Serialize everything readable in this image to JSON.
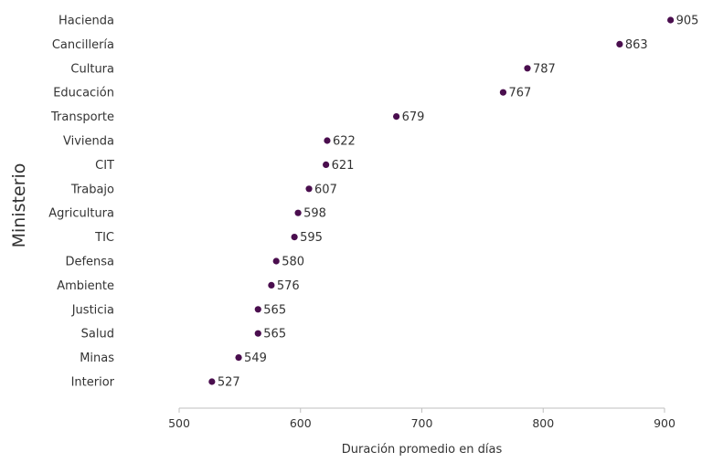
{
  "chart_data": {
    "type": "scatter",
    "orientation": "horizontal",
    "categories": [
      "Hacienda",
      "Cancillería",
      "Cultura",
      "Educación",
      "Transporte",
      "Vivienda",
      "CIT",
      "Trabajo",
      "Agricultura",
      "TIC",
      "Defensa",
      "Ambiente",
      "Justicia",
      "Salud",
      "Minas",
      "Interior"
    ],
    "values": [
      905,
      863,
      787,
      767,
      679,
      622,
      621,
      607,
      598,
      595,
      580,
      576,
      565,
      565,
      549,
      527
    ],
    "xlabel": "Duración promedio en días",
    "ylabel": "Ministerio",
    "xlim": [
      500,
      900
    ],
    "xticks": [
      500,
      600,
      700,
      800,
      900
    ],
    "grid": false,
    "legend": "none",
    "data_labels": true,
    "point_color": "#4a0e4e"
  }
}
